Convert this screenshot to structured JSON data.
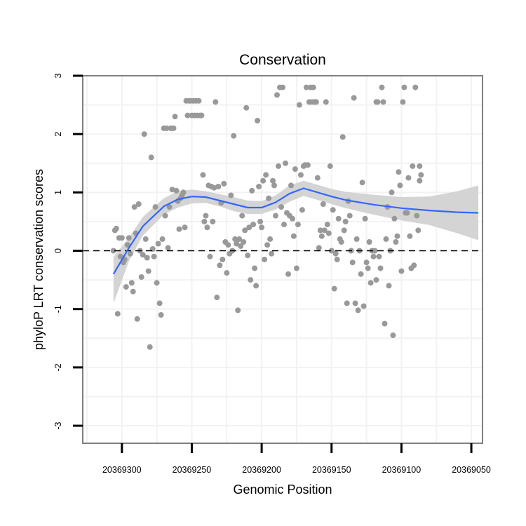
{
  "chart_data": {
    "type": "scatter",
    "title": "Conservation",
    "xlabel": "Genomic Position",
    "ylabel": "phyloP LRT conservation scores",
    "x_reversed": true,
    "xlim": [
      20369328,
      20369042
    ],
    "ylim": [
      -3.3,
      3.0
    ],
    "x_ticks": [
      20369300,
      20369250,
      20369200,
      20369150,
      20369100,
      20369050
    ],
    "x_tick_labels": [
      "20369300",
      "20369250",
      "20369200",
      "20369150",
      "20369100",
      "20369050"
    ],
    "y_ticks": [
      -3,
      -2,
      -1,
      0,
      1,
      2,
      3
    ],
    "y_tick_labels": [
      "-3",
      "-2",
      "-1",
      "0",
      "1",
      "2",
      "3"
    ],
    "reference_line": {
      "y": 0,
      "style": "dashed"
    },
    "colors": {
      "points": "#999999",
      "smooth": "#3366ff",
      "band": "#d4d4d4",
      "frame": "#7f7f7f",
      "grid": "#f2f2f2"
    },
    "points": [
      [
        20369306,
        0.0
      ],
      [
        20369305,
        0.35
      ],
      [
        20369304,
        0.38
      ],
      [
        20369303,
        -1.08
      ],
      [
        20369302,
        0.22
      ],
      [
        20369301,
        -0.1
      ],
      [
        20369300,
        0.22
      ],
      [
        20369299,
        -0.2
      ],
      [
        20369298,
        -0.15
      ],
      [
        20369297,
        -0.62
      ],
      [
        20369296,
        0.1
      ],
      [
        20369295,
        0.22
      ],
      [
        20369294,
        -0.05
      ],
      [
        20369293,
        -0.55
      ],
      [
        20369292,
        -0.7
      ],
      [
        20369291,
        0.75
      ],
      [
        20369290,
        0.3
      ],
      [
        20369289,
        -1.17
      ],
      [
        20369288,
        0.8
      ],
      [
        20369287,
        0.0
      ],
      [
        20369286,
        -0.45
      ],
      [
        20369285,
        -0.07
      ],
      [
        20369284,
        2.0
      ],
      [
        20369283,
        0.2
      ],
      [
        20369282,
        -0.12
      ],
      [
        20369281,
        -0.35
      ],
      [
        20369280,
        -1.65
      ],
      [
        20369279,
        1.6
      ],
      [
        20369278,
        0.03
      ],
      [
        20369277,
        -0.1
      ],
      [
        20369276,
        0.75
      ],
      [
        20369275,
        -0.55
      ],
      [
        20369274,
        0.12
      ],
      [
        20369273,
        -0.9
      ],
      [
        20369272,
        -1.1
      ],
      [
        20369271,
        0.2
      ],
      [
        20369270,
        2.1
      ],
      [
        20369269,
        0.6
      ],
      [
        20369268,
        2.1
      ],
      [
        20369267,
        0.05
      ],
      [
        20369266,
        0.75
      ],
      [
        20369265,
        2.1
      ],
      [
        20369264,
        1.05
      ],
      [
        20369263,
        2.1
      ],
      [
        20369262,
        2.3
      ],
      [
        20369261,
        1.03
      ],
      [
        20369260,
        0.85
      ],
      [
        20369259,
        0.37
      ],
      [
        20369258,
        0.9
      ],
      [
        20369257,
        0.95
      ],
      [
        20369256,
        1.0
      ],
      [
        20369255,
        0.4
      ],
      [
        20369254,
        2.57
      ],
      [
        20369253,
        2.32
      ],
      [
        20369252,
        2.57
      ],
      [
        20369251,
        2.57
      ],
      [
        20369250,
        2.32
      ],
      [
        20369249,
        2.57
      ],
      [
        20369248,
        2.32
      ],
      [
        20369247,
        2.57
      ],
      [
        20369246,
        2.32
      ],
      [
        20369245,
        2.57
      ],
      [
        20369244,
        2.32
      ],
      [
        20369243,
        2.32
      ],
      [
        20369242,
        1.3
      ],
      [
        20369241,
        0.5
      ],
      [
        20369240,
        0.6
      ],
      [
        20369239,
        0.4
      ],
      [
        20369238,
        1.12
      ],
      [
        20369237,
        -0.1
      ],
      [
        20369236,
        1.1
      ],
      [
        20369235,
        0.5
      ],
      [
        20369234,
        1.08
      ],
      [
        20369233,
        2.55
      ],
      [
        20369232,
        -0.8
      ],
      [
        20369231,
        1.1
      ],
      [
        20369230,
        -0.25
      ],
      [
        20369229,
        0.82
      ],
      [
        20369228,
        -0.15
      ],
      [
        20369227,
        1.15
      ],
      [
        20369226,
        0.15
      ],
      [
        20369225,
        -0.38
      ],
      [
        20369224,
        0.1
      ],
      [
        20369223,
        -0.05
      ],
      [
        20369222,
        0.95
      ],
      [
        20369221,
        0.0
      ],
      [
        20369220,
        1.97
      ],
      [
        20369219,
        0.2
      ],
      [
        20369218,
        0.12
      ],
      [
        20369217,
        -1.02
      ],
      [
        20369216,
        0.2
      ],
      [
        20369215,
        0.08
      ],
      [
        20369214,
        0.6
      ],
      [
        20369213,
        0.15
      ],
      [
        20369212,
        0.35
      ],
      [
        20369211,
        2.45
      ],
      [
        20369210,
        -0.08
      ],
      [
        20369209,
        0.4
      ],
      [
        20369208,
        -0.5
      ],
      [
        20369207,
        1.03
      ],
      [
        20369206,
        0.45
      ],
      [
        20369205,
        -0.3
      ],
      [
        20369204,
        -0.6
      ],
      [
        20369203,
        2.23
      ],
      [
        20369202,
        1.1
      ],
      [
        20369201,
        0.5
      ],
      [
        20369200,
        0.4
      ],
      [
        20369199,
        1.2
      ],
      [
        20369198,
        -0.15
      ],
      [
        20369197,
        1.3
      ],
      [
        20369196,
        0.1
      ],
      [
        20369195,
        0.9
      ],
      [
        20369194,
        0.2
      ],
      [
        20369193,
        -0.05
      ],
      [
        20369192,
        1.2
      ],
      [
        20369191,
        1.12
      ],
      [
        20369190,
        0.6
      ],
      [
        20369189,
        2.67
      ],
      [
        20369188,
        1.45
      ],
      [
        20369187,
        2.8
      ],
      [
        20369186,
        0.75
      ],
      [
        20369185,
        2.8
      ],
      [
        20369184,
        0.45
      ],
      [
        20369183,
        1.5
      ],
      [
        20369182,
        0.65
      ],
      [
        20369181,
        -0.4
      ],
      [
        20369180,
        0.6
      ],
      [
        20369179,
        1.12
      ],
      [
        20369178,
        0.55
      ],
      [
        20369177,
        0.25
      ],
      [
        20369176,
        1.4
      ],
      [
        20369175,
        -0.3
      ],
      [
        20369174,
        0.45
      ],
      [
        20369173,
        2.5
      ],
      [
        20369172,
        1.3
      ],
      [
        20369171,
        0.7
      ],
      [
        20369170,
        1.45
      ],
      [
        20369169,
        1.47
      ],
      [
        20369168,
        2.8
      ],
      [
        20369167,
        1.47
      ],
      [
        20369166,
        2.55
      ],
      [
        20369165,
        2.8
      ],
      [
        20369164,
        2.55
      ],
      [
        20369163,
        2.8
      ],
      [
        20369162,
        2.55
      ],
      [
        20369161,
        2.55
      ],
      [
        20369160,
        1.25
      ],
      [
        20369159,
        0.05
      ],
      [
        20369158,
        0.35
      ],
      [
        20369157,
        0.25
      ],
      [
        20369156,
        0.8
      ],
      [
        20369155,
        0.35
      ],
      [
        20369154,
        2.55
      ],
      [
        20369153,
        0.45
      ],
      [
        20369152,
        0.3
      ],
      [
        20369151,
        1.45
      ],
      [
        20369150,
        0.0
      ],
      [
        20369149,
        0.7
      ],
      [
        20369148,
        -0.65
      ],
      [
        20369147,
        -0.05
      ],
      [
        20369146,
        -0.15
      ],
      [
        20369145,
        0.55
      ],
      [
        20369144,
        0.2
      ],
      [
        20369143,
        0.15
      ],
      [
        20369142,
        1.95
      ],
      [
        20369141,
        0.35
      ],
      [
        20369140,
        0.5
      ],
      [
        20369139,
        -0.9
      ],
      [
        20369138,
        0.85
      ],
      [
        20369137,
        0.6
      ],
      [
        20369136,
        0.0
      ],
      [
        20369135,
        -0.2
      ],
      [
        20369134,
        2.62
      ],
      [
        20369133,
        -0.9
      ],
      [
        20369132,
        0.2
      ],
      [
        20369131,
        -1.02
      ],
      [
        20369130,
        0.0
      ],
      [
        20369129,
        -0.4
      ],
      [
        20369128,
        1.17
      ],
      [
        20369127,
        -0.95
      ],
      [
        20369126,
        0.55
      ],
      [
        20369125,
        -0.2
      ],
      [
        20369124,
        -0.3
      ],
      [
        20369123,
        0.15
      ],
      [
        20369122,
        -0.55
      ],
      [
        20369121,
        0.0
      ],
      [
        20369120,
        -0.1
      ],
      [
        20369119,
        0.0
      ],
      [
        20369118,
        -0.5
      ],
      [
        20369117,
        2.55
      ],
      [
        20369116,
        -0.1
      ],
      [
        20369115,
        -0.3
      ],
      [
        20369114,
        2.8
      ],
      [
        20369113,
        2.55
      ],
      [
        20369112,
        -1.25
      ],
      [
        20369111,
        0.2
      ],
      [
        20369110,
        0.75
      ],
      [
        20369109,
        -0.6
      ],
      [
        20369108,
        0.0
      ],
      [
        20369107,
        1.0
      ],
      [
        20369106,
        -1.45
      ],
      [
        20369105,
        0.55
      ],
      [
        20369104,
        0.15
      ],
      [
        20369103,
        0.25
      ],
      [
        20369102,
        1.35
      ],
      [
        20369101,
        1.12
      ],
      [
        20369100,
        -0.35
      ],
      [
        20369099,
        2.55
      ],
      [
        20369098,
        2.8
      ],
      [
        20369097,
        0.65
      ],
      [
        20369096,
        0.65
      ],
      [
        20369095,
        1.25
      ],
      [
        20369094,
        0.25
      ],
      [
        20369093,
        -0.3
      ],
      [
        20369092,
        1.45
      ],
      [
        20369091,
        -0.25
      ],
      [
        20369090,
        2.8
      ],
      [
        20369089,
        0.6
      ],
      [
        20369088,
        0.35
      ],
      [
        20369087,
        1.45
      ],
      [
        20369086,
        1.3
      ],
      [
        20369118,
        2.55
      ],
      [
        20369087,
        1.2
      ]
    ],
    "smooth_line": [
      [
        20369306,
        -0.4
      ],
      [
        20369295,
        0.05
      ],
      [
        20369285,
        0.42
      ],
      [
        20369270,
        0.76
      ],
      [
        20369260,
        0.88
      ],
      [
        20369250,
        0.93
      ],
      [
        20369240,
        0.92
      ],
      [
        20369230,
        0.86
      ],
      [
        20369220,
        0.8
      ],
      [
        20369210,
        0.74
      ],
      [
        20369200,
        0.74
      ],
      [
        20369190,
        0.83
      ],
      [
        20369180,
        0.98
      ],
      [
        20369170,
        1.07
      ],
      [
        20369160,
        1.0
      ],
      [
        20369150,
        0.93
      ],
      [
        20369140,
        0.87
      ],
      [
        20369120,
        0.79
      ],
      [
        20369100,
        0.73
      ],
      [
        20369080,
        0.69
      ],
      [
        20369060,
        0.66
      ],
      [
        20369045,
        0.65
      ]
    ],
    "band_upper": [
      [
        20369306,
        -0.1
      ],
      [
        20369295,
        0.22
      ],
      [
        20369285,
        0.58
      ],
      [
        20369270,
        0.9
      ],
      [
        20369260,
        1.02
      ],
      [
        20369250,
        1.05
      ],
      [
        20369240,
        1.02
      ],
      [
        20369230,
        0.97
      ],
      [
        20369220,
        0.92
      ],
      [
        20369210,
        0.86
      ],
      [
        20369200,
        0.85
      ],
      [
        20369190,
        0.95
      ],
      [
        20369180,
        1.12
      ],
      [
        20369170,
        1.2
      ],
      [
        20369160,
        1.13
      ],
      [
        20369150,
        1.06
      ],
      [
        20369140,
        1.01
      ],
      [
        20369120,
        0.96
      ],
      [
        20369100,
        0.92
      ],
      [
        20369080,
        0.93
      ],
      [
        20369060,
        1.02
      ],
      [
        20369045,
        1.12
      ]
    ],
    "band_lower": [
      [
        20369306,
        -0.9
      ],
      [
        20369295,
        -0.18
      ],
      [
        20369285,
        0.26
      ],
      [
        20369270,
        0.62
      ],
      [
        20369260,
        0.74
      ],
      [
        20369250,
        0.81
      ],
      [
        20369240,
        0.82
      ],
      [
        20369230,
        0.76
      ],
      [
        20369220,
        0.68
      ],
      [
        20369210,
        0.63
      ],
      [
        20369200,
        0.63
      ],
      [
        20369190,
        0.71
      ],
      [
        20369180,
        0.84
      ],
      [
        20369170,
        0.94
      ],
      [
        20369160,
        0.87
      ],
      [
        20369150,
        0.8
      ],
      [
        20369140,
        0.73
      ],
      [
        20369120,
        0.62
      ],
      [
        20369100,
        0.52
      ],
      [
        20369080,
        0.44
      ],
      [
        20369060,
        0.3
      ],
      [
        20369045,
        0.18
      ]
    ]
  }
}
